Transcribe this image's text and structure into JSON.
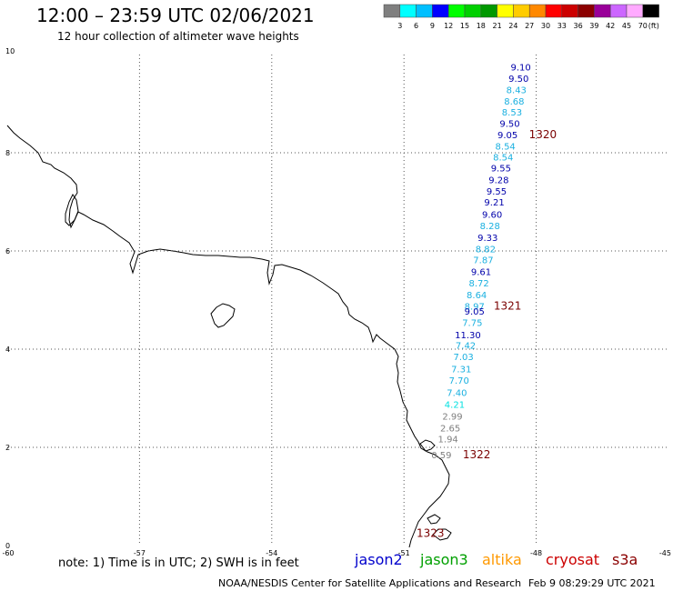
{
  "header": {
    "title": "12:00 – 23:59 UTC 02/06/2021",
    "subtitle": "12 hour collection of altimeter wave heights"
  },
  "colorbar": {
    "colors": [
      "#7f7f7f",
      "#00ffff",
      "#00bfff",
      "#0000ff",
      "#00ff00",
      "#00d000",
      "#009800",
      "#ffff00",
      "#ffcc00",
      "#ff8800",
      "#ff0000",
      "#cc0000",
      "#8b0000",
      "#990099",
      "#cc66ff",
      "#ffaaff",
      "#000000"
    ],
    "labels": [
      "3",
      "6",
      "9",
      "12",
      "15",
      "18",
      "21",
      "24",
      "27",
      "30",
      "33",
      "36",
      "39",
      "42",
      "45",
      "70",
      "(ft)"
    ]
  },
  "axes": {
    "x_ticks": [
      "-60",
      "-57",
      "-54",
      "-51",
      "-48",
      "-45"
    ],
    "y_ticks": [
      "0",
      "2",
      "4",
      "6",
      "8",
      "10"
    ]
  },
  "chart_data": {
    "type": "scatter",
    "title": "12:00 – 23:59 UTC 02/06/2021",
    "subtitle": "12 hour collection of altimeter wave heights",
    "xlim": [
      -60,
      -45
    ],
    "ylim": [
      0,
      10
    ],
    "grid": true,
    "points": [
      {
        "lon": -48.35,
        "lat": 9.75,
        "swh": "9.10",
        "color": "#0000aa"
      },
      {
        "lon": -48.4,
        "lat": 9.52,
        "swh": "9.50",
        "color": "#0000aa"
      },
      {
        "lon": -48.45,
        "lat": 9.29,
        "swh": "8.43",
        "color": "#1ab0e0"
      },
      {
        "lon": -48.5,
        "lat": 9.06,
        "swh": "8.68",
        "color": "#1ab0e0"
      },
      {
        "lon": -48.55,
        "lat": 8.83,
        "swh": "8.53",
        "color": "#1ab0e0"
      },
      {
        "lon": -48.6,
        "lat": 8.6,
        "swh": "9.50",
        "color": "#0000aa"
      },
      {
        "lon": -48.65,
        "lat": 8.37,
        "swh": "9.05",
        "color": "#0000aa"
      },
      {
        "lon": -48.7,
        "lat": 8.14,
        "swh": "8.54",
        "color": "#1ab0e0"
      },
      {
        "lon": -48.75,
        "lat": 7.92,
        "swh": "8.54",
        "color": "#1ab0e0"
      },
      {
        "lon": -48.8,
        "lat": 7.69,
        "swh": "9.55",
        "color": "#0000aa"
      },
      {
        "lon": -48.85,
        "lat": 7.45,
        "swh": "9.28",
        "color": "#0000aa"
      },
      {
        "lon": -48.9,
        "lat": 7.22,
        "swh": "9.55",
        "color": "#0000aa"
      },
      {
        "lon": -48.95,
        "lat": 7.0,
        "swh": "9.21",
        "color": "#0000aa"
      },
      {
        "lon": -49.0,
        "lat": 6.75,
        "swh": "9.60",
        "color": "#0000aa"
      },
      {
        "lon": -49.05,
        "lat": 6.52,
        "swh": "8.28",
        "color": "#1ab0e0"
      },
      {
        "lon": -49.1,
        "lat": 6.28,
        "swh": "9.33",
        "color": "#0000aa"
      },
      {
        "lon": -49.15,
        "lat": 6.05,
        "swh": "8.82",
        "color": "#1ab0e0"
      },
      {
        "lon": -49.2,
        "lat": 5.82,
        "swh": "7.87",
        "color": "#1ab0e0"
      },
      {
        "lon": -49.25,
        "lat": 5.58,
        "swh": "9.61",
        "color": "#0000aa"
      },
      {
        "lon": -49.3,
        "lat": 5.35,
        "swh": "8.72",
        "color": "#1ab0e0"
      },
      {
        "lon": -49.35,
        "lat": 5.11,
        "swh": "8.64",
        "color": "#1ab0e0"
      },
      {
        "lon": -49.4,
        "lat": 4.88,
        "swh": "8.97",
        "color": "#1ab0e0"
      },
      {
        "lon": -49.4,
        "lat": 4.78,
        "swh": "9.05",
        "color": "#0000aa"
      },
      {
        "lon": -49.45,
        "lat": 4.55,
        "swh": "7.75",
        "color": "#1ab0e0"
      },
      {
        "lon": -49.55,
        "lat": 4.3,
        "swh": "11.30",
        "color": "#0000aa"
      },
      {
        "lon": -49.6,
        "lat": 4.08,
        "swh": "7.42",
        "color": "#1ab0e0"
      },
      {
        "lon": -49.65,
        "lat": 3.85,
        "swh": "7.03",
        "color": "#1ab0e0"
      },
      {
        "lon": -49.7,
        "lat": 3.6,
        "swh": "7.31",
        "color": "#1ab0e0"
      },
      {
        "lon": -49.75,
        "lat": 3.37,
        "swh": "7.70",
        "color": "#1ab0e0"
      },
      {
        "lon": -49.8,
        "lat": 3.12,
        "swh": "7.40",
        "color": "#1ab0e0"
      },
      {
        "lon": -49.85,
        "lat": 2.88,
        "swh": "4.21",
        "color": "#00e0e0"
      },
      {
        "lon": -49.9,
        "lat": 2.64,
        "swh": "2.99",
        "color": "#7f7f7f"
      },
      {
        "lon": -49.95,
        "lat": 2.4,
        "swh": "2.65",
        "color": "#7f7f7f"
      },
      {
        "lon": -50.0,
        "lat": 2.18,
        "swh": "1.94",
        "color": "#7f7f7f"
      },
      {
        "lon": -50.15,
        "lat": 1.85,
        "swh": "0.59",
        "color": "#7f7f7f"
      }
    ],
    "pass_labels": [
      {
        "lon": -47.85,
        "lat": 8.37,
        "text": "1320"
      },
      {
        "lon": -48.65,
        "lat": 4.88,
        "text": "1321"
      },
      {
        "lon": -49.35,
        "lat": 1.85,
        "text": "1322"
      },
      {
        "lon": -50.4,
        "lat": 0.25,
        "text": "1323"
      }
    ]
  },
  "footer": {
    "note": "note: 1) Time is in UTC; 2) SWH is in feet",
    "satellites": [
      {
        "name": "jason2",
        "color": "#0000cc"
      },
      {
        "name": "jason3",
        "color": "#00a000"
      },
      {
        "name": "altika",
        "color": "#ff9900"
      },
      {
        "name": "cryosat",
        "color": "#cc0000"
      },
      {
        "name": "s3a",
        "color": "#8b0000"
      }
    ],
    "credit": "NOAA/NESDIS Center for Satellite Applications and Research",
    "timestamp": "Feb  9 08:29:29 UTC 2021"
  }
}
